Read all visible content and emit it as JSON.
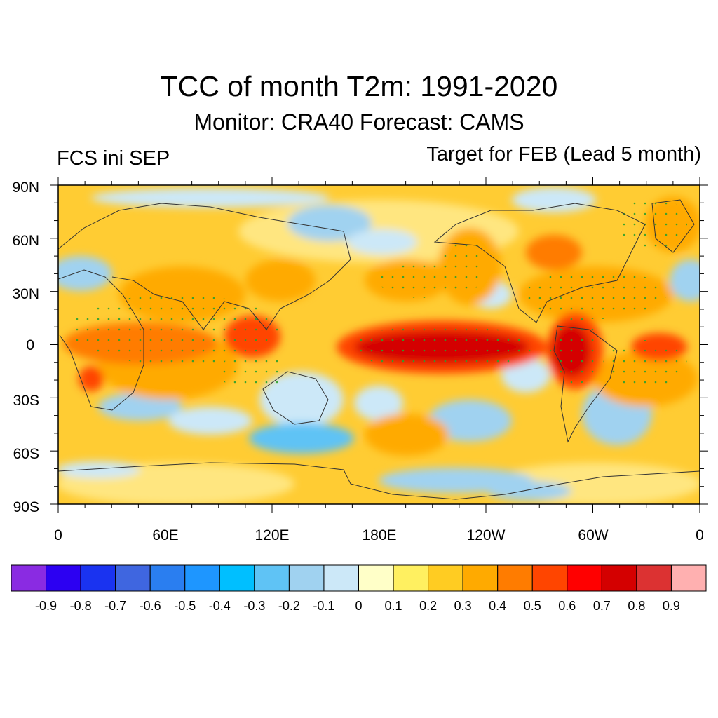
{
  "header": {
    "title": "TCC of month T2m: 1991-2020",
    "subtitle": "Monitor: CRA40   Forecast: CAMS",
    "left_label": "FCS ini SEP",
    "right_label": "Target for FEB (Lead 5 month)"
  },
  "axes": {
    "y_labels": [
      "90N",
      "60N",
      "30N",
      "0",
      "30S",
      "60S",
      "90S"
    ],
    "x_labels": [
      "0",
      "60E",
      "120E",
      "180E",
      "120W",
      "60W",
      "0"
    ],
    "lon_range": [
      0,
      360
    ],
    "lat_range": [
      -90,
      90
    ]
  },
  "colorbar": {
    "labels": [
      "-0.9",
      "-0.8",
      "-0.7",
      "-0.6",
      "-0.5",
      "-0.4",
      "-0.3",
      "-0.2",
      "-0.1",
      "0",
      "0.1",
      "0.2",
      "0.3",
      "0.4",
      "0.5",
      "0.6",
      "0.7",
      "0.8",
      "0.9"
    ],
    "colors": [
      "#8a2be2",
      "#2c00f2",
      "#1a33f0",
      "#3f66e0",
      "#2a7ef0",
      "#1e96ff",
      "#00bfff",
      "#5fc3f5",
      "#a0d2f0",
      "#cce8f8",
      "#ffffc8",
      "#fff060",
      "#ffcc22",
      "#ffaa00",
      "#ff7c00",
      "#ff4500",
      "#ff0000",
      "#d40000",
      "#dc3232",
      "#ffb0b0"
    ]
  }
}
